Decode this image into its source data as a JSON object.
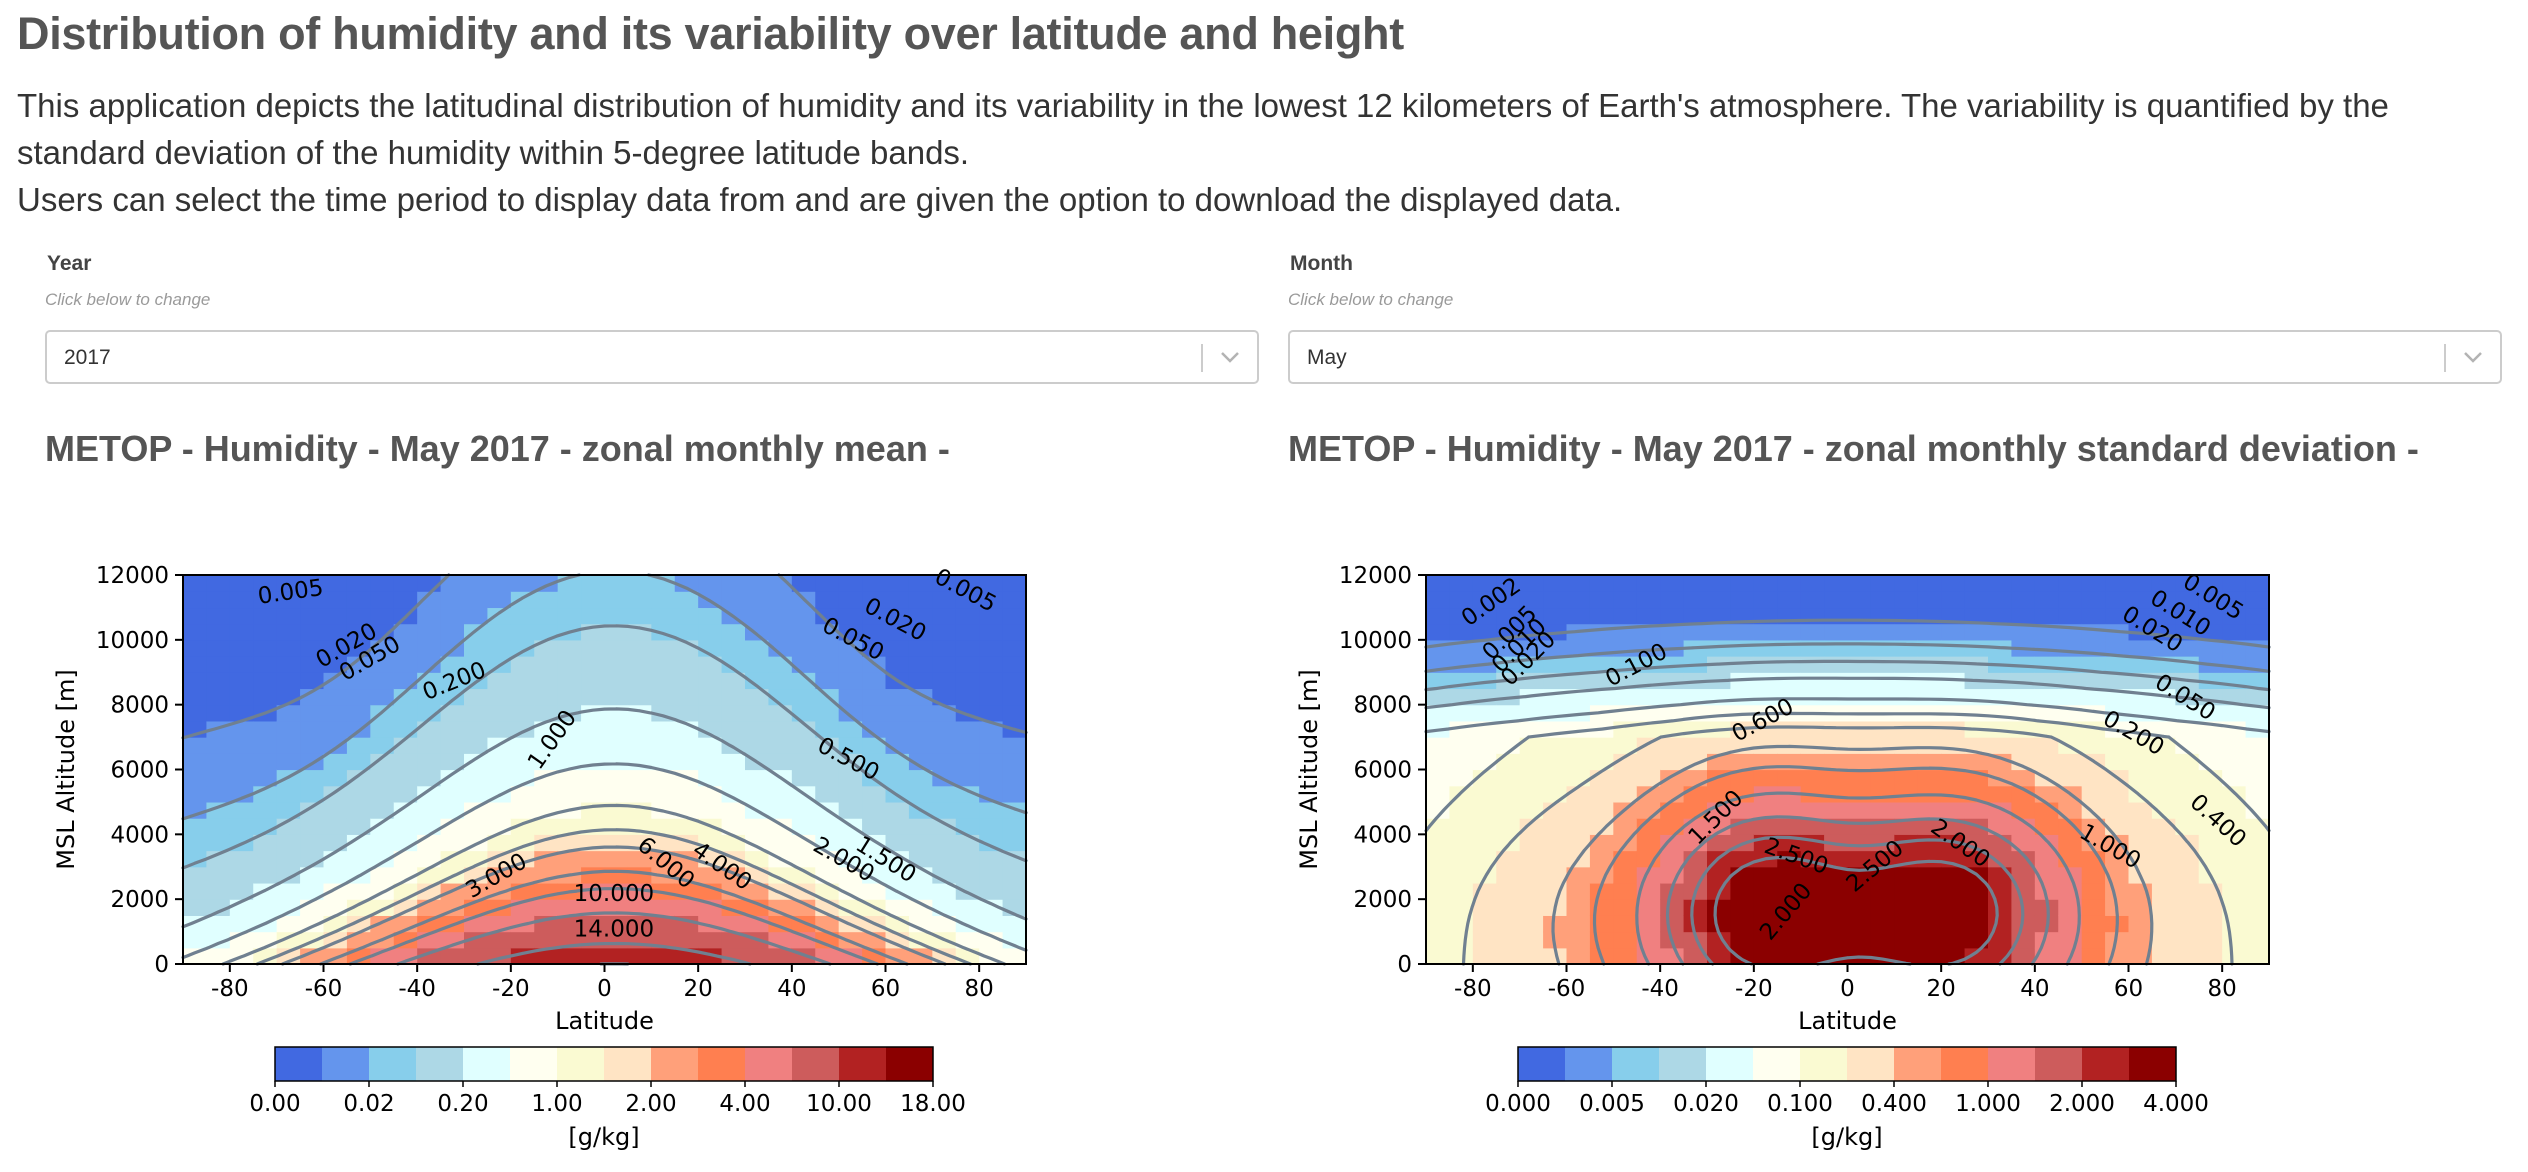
{
  "app": {
    "title": "Distribution of humidity and its variability over latitude and height",
    "description_1": "This application depicts the latitudinal distribution of humidity and its variability in the lowest 12 kilometers of Earth's atmosphere. The variability is quantified by the standard deviation of the humidity within 5-degree latitude bands.",
    "description_2": "Users can select the time period to display data from and are given the option to download the displayed data."
  },
  "controls": {
    "year": {
      "label": "Year",
      "hint": "Click below to change",
      "value": "2017",
      "icon": "chevron-down-icon"
    },
    "month": {
      "label": "Month",
      "hint": "Click below to change",
      "value": "May",
      "icon": "chevron-down-icon"
    }
  },
  "colors": {
    "palette": [
      "#4169e1",
      "#6495ed",
      "#87ceeb",
      "#add8e6",
      "#e0ffff",
      "#fffff0",
      "#fafad2",
      "#ffe4c4",
      "#ffa07a",
      "#ff7f50",
      "#f08080",
      "#cd5c5c",
      "#b22222",
      "#8b0000"
    ],
    "contour": "#708090"
  },
  "chart_data": [
    {
      "type": "heatmap",
      "title": "METOP - Humidity - May 2017 - zonal monthly mean -",
      "xlabel": "Latitude",
      "ylabel": "MSL Altitude [m]",
      "xlim": [
        -90,
        90
      ],
      "ylim": [
        0,
        12000
      ],
      "x_ticks": [
        -80,
        -60,
        -40,
        -20,
        0,
        20,
        40,
        60,
        80
      ],
      "y_ticks": [
        0,
        2000,
        4000,
        6000,
        8000,
        10000,
        12000
      ],
      "levels": [
        0,
        0.005,
        0.02,
        0.05,
        0.2,
        0.5,
        1,
        1.5,
        2,
        3,
        4,
        6,
        10,
        14,
        18
      ],
      "colorbar_ticks": [
        "0.00",
        "0.02",
        "0.20",
        "1.00",
        "2.00",
        "4.00",
        "10.00",
        "18.00"
      ],
      "colorbar_label": "[g/kg]",
      "contour_labels": [
        {
          "text": "0.005",
          "lat": -67,
          "alt": 11450,
          "rot": -8
        },
        {
          "text": "0.020",
          "lat": -55,
          "alt": 9800,
          "rot": -30
        },
        {
          "text": "0.050",
          "lat": -50,
          "alt": 9400,
          "rot": -30
        },
        {
          "text": "0.200",
          "lat": -32,
          "alt": 8700,
          "rot": -22
        },
        {
          "text": "1.000",
          "lat": -11,
          "alt": 6900,
          "rot": -55
        },
        {
          "text": "3.000",
          "lat": -23,
          "alt": 2700,
          "rot": -30
        },
        {
          "text": "6.000",
          "lat": 13,
          "alt": 3100,
          "rot": 40
        },
        {
          "text": "4.000",
          "lat": 25,
          "alt": 3000,
          "rot": 35
        },
        {
          "text": "2.000",
          "lat": 51,
          "alt": 3200,
          "rot": 30
        },
        {
          "text": "1.500",
          "lat": 60,
          "alt": 3200,
          "rot": 32
        },
        {
          "text": "0.500",
          "lat": 52,
          "alt": 6300,
          "rot": 28
        },
        {
          "text": "0.050",
          "lat": 53,
          "alt": 10000,
          "rot": 28
        },
        {
          "text": "0.020",
          "lat": 62,
          "alt": 10600,
          "rot": 28
        },
        {
          "text": "0.005",
          "lat": 77,
          "alt": 11500,
          "rot": 28
        },
        {
          "text": "10.000",
          "lat": 2,
          "alt": 2150,
          "rot": 0
        },
        {
          "text": "14.000",
          "lat": 2,
          "alt": 1050,
          "rot": 0
        }
      ]
    },
    {
      "type": "heatmap",
      "title": "METOP - Humidity - May 2017 - zonal monthly standard deviation -",
      "xlabel": "Latitude",
      "ylabel": "MSL Altitude [m]",
      "xlim": [
        -90,
        90
      ],
      "ylim": [
        0,
        12000
      ],
      "x_ticks": [
        -80,
        -60,
        -40,
        -20,
        0,
        20,
        40,
        60,
        80
      ],
      "y_ticks": [
        0,
        2000,
        4000,
        6000,
        8000,
        10000,
        12000
      ],
      "levels": [
        0,
        0.002,
        0.005,
        0.01,
        0.02,
        0.05,
        0.1,
        0.2,
        0.4,
        0.6,
        1.0,
        1.5,
        2.0,
        2.5,
        4.0
      ],
      "colorbar_ticks": [
        "0.000",
        "0.005",
        "0.020",
        "0.100",
        "0.400",
        "1.000",
        "2.000",
        "4.000"
      ],
      "colorbar_label": "[g/kg]",
      "contour_labels": [
        {
          "text": "0.002",
          "lat": -76,
          "alt": 11150,
          "rot": -35
        },
        {
          "text": "0.005",
          "lat": -72,
          "alt": 10200,
          "rot": -45
        },
        {
          "text": "0.010",
          "lat": -70,
          "alt": 9800,
          "rot": -45
        },
        {
          "text": "0.020",
          "lat": -68,
          "alt": 9400,
          "rot": -45
        },
        {
          "text": "0.100",
          "lat": -45,
          "alt": 9200,
          "rot": -28
        },
        {
          "text": "0.600",
          "lat": -18,
          "alt": 7500,
          "rot": -28
        },
        {
          "text": "1.500",
          "lat": -28,
          "alt": 4500,
          "rot": -45
        },
        {
          "text": "2.500",
          "lat": -11,
          "alt": 3300,
          "rot": 20
        },
        {
          "text": "2.000",
          "lat": -13,
          "alt": 1600,
          "rot": -50
        },
        {
          "text": "2.500",
          "lat": 6,
          "alt": 3000,
          "rot": -40
        },
        {
          "text": "2.000",
          "lat": 24,
          "alt": 3700,
          "rot": 35
        },
        {
          "text": "1.000",
          "lat": 56,
          "alt": 3600,
          "rot": 30
        },
        {
          "text": "0.400",
          "lat": 79,
          "alt": 4400,
          "rot": 42
        },
        {
          "text": "0.200",
          "lat": 61,
          "alt": 7100,
          "rot": 30
        },
        {
          "text": "0.050",
          "lat": 72,
          "alt": 8200,
          "rot": 32
        },
        {
          "text": "0.020",
          "lat": 65,
          "alt": 10300,
          "rot": 32
        },
        {
          "text": "0.010",
          "lat": 71,
          "alt": 10800,
          "rot": 32
        },
        {
          "text": "0.005",
          "lat": 78,
          "alt": 11300,
          "rot": 32
        }
      ]
    }
  ]
}
